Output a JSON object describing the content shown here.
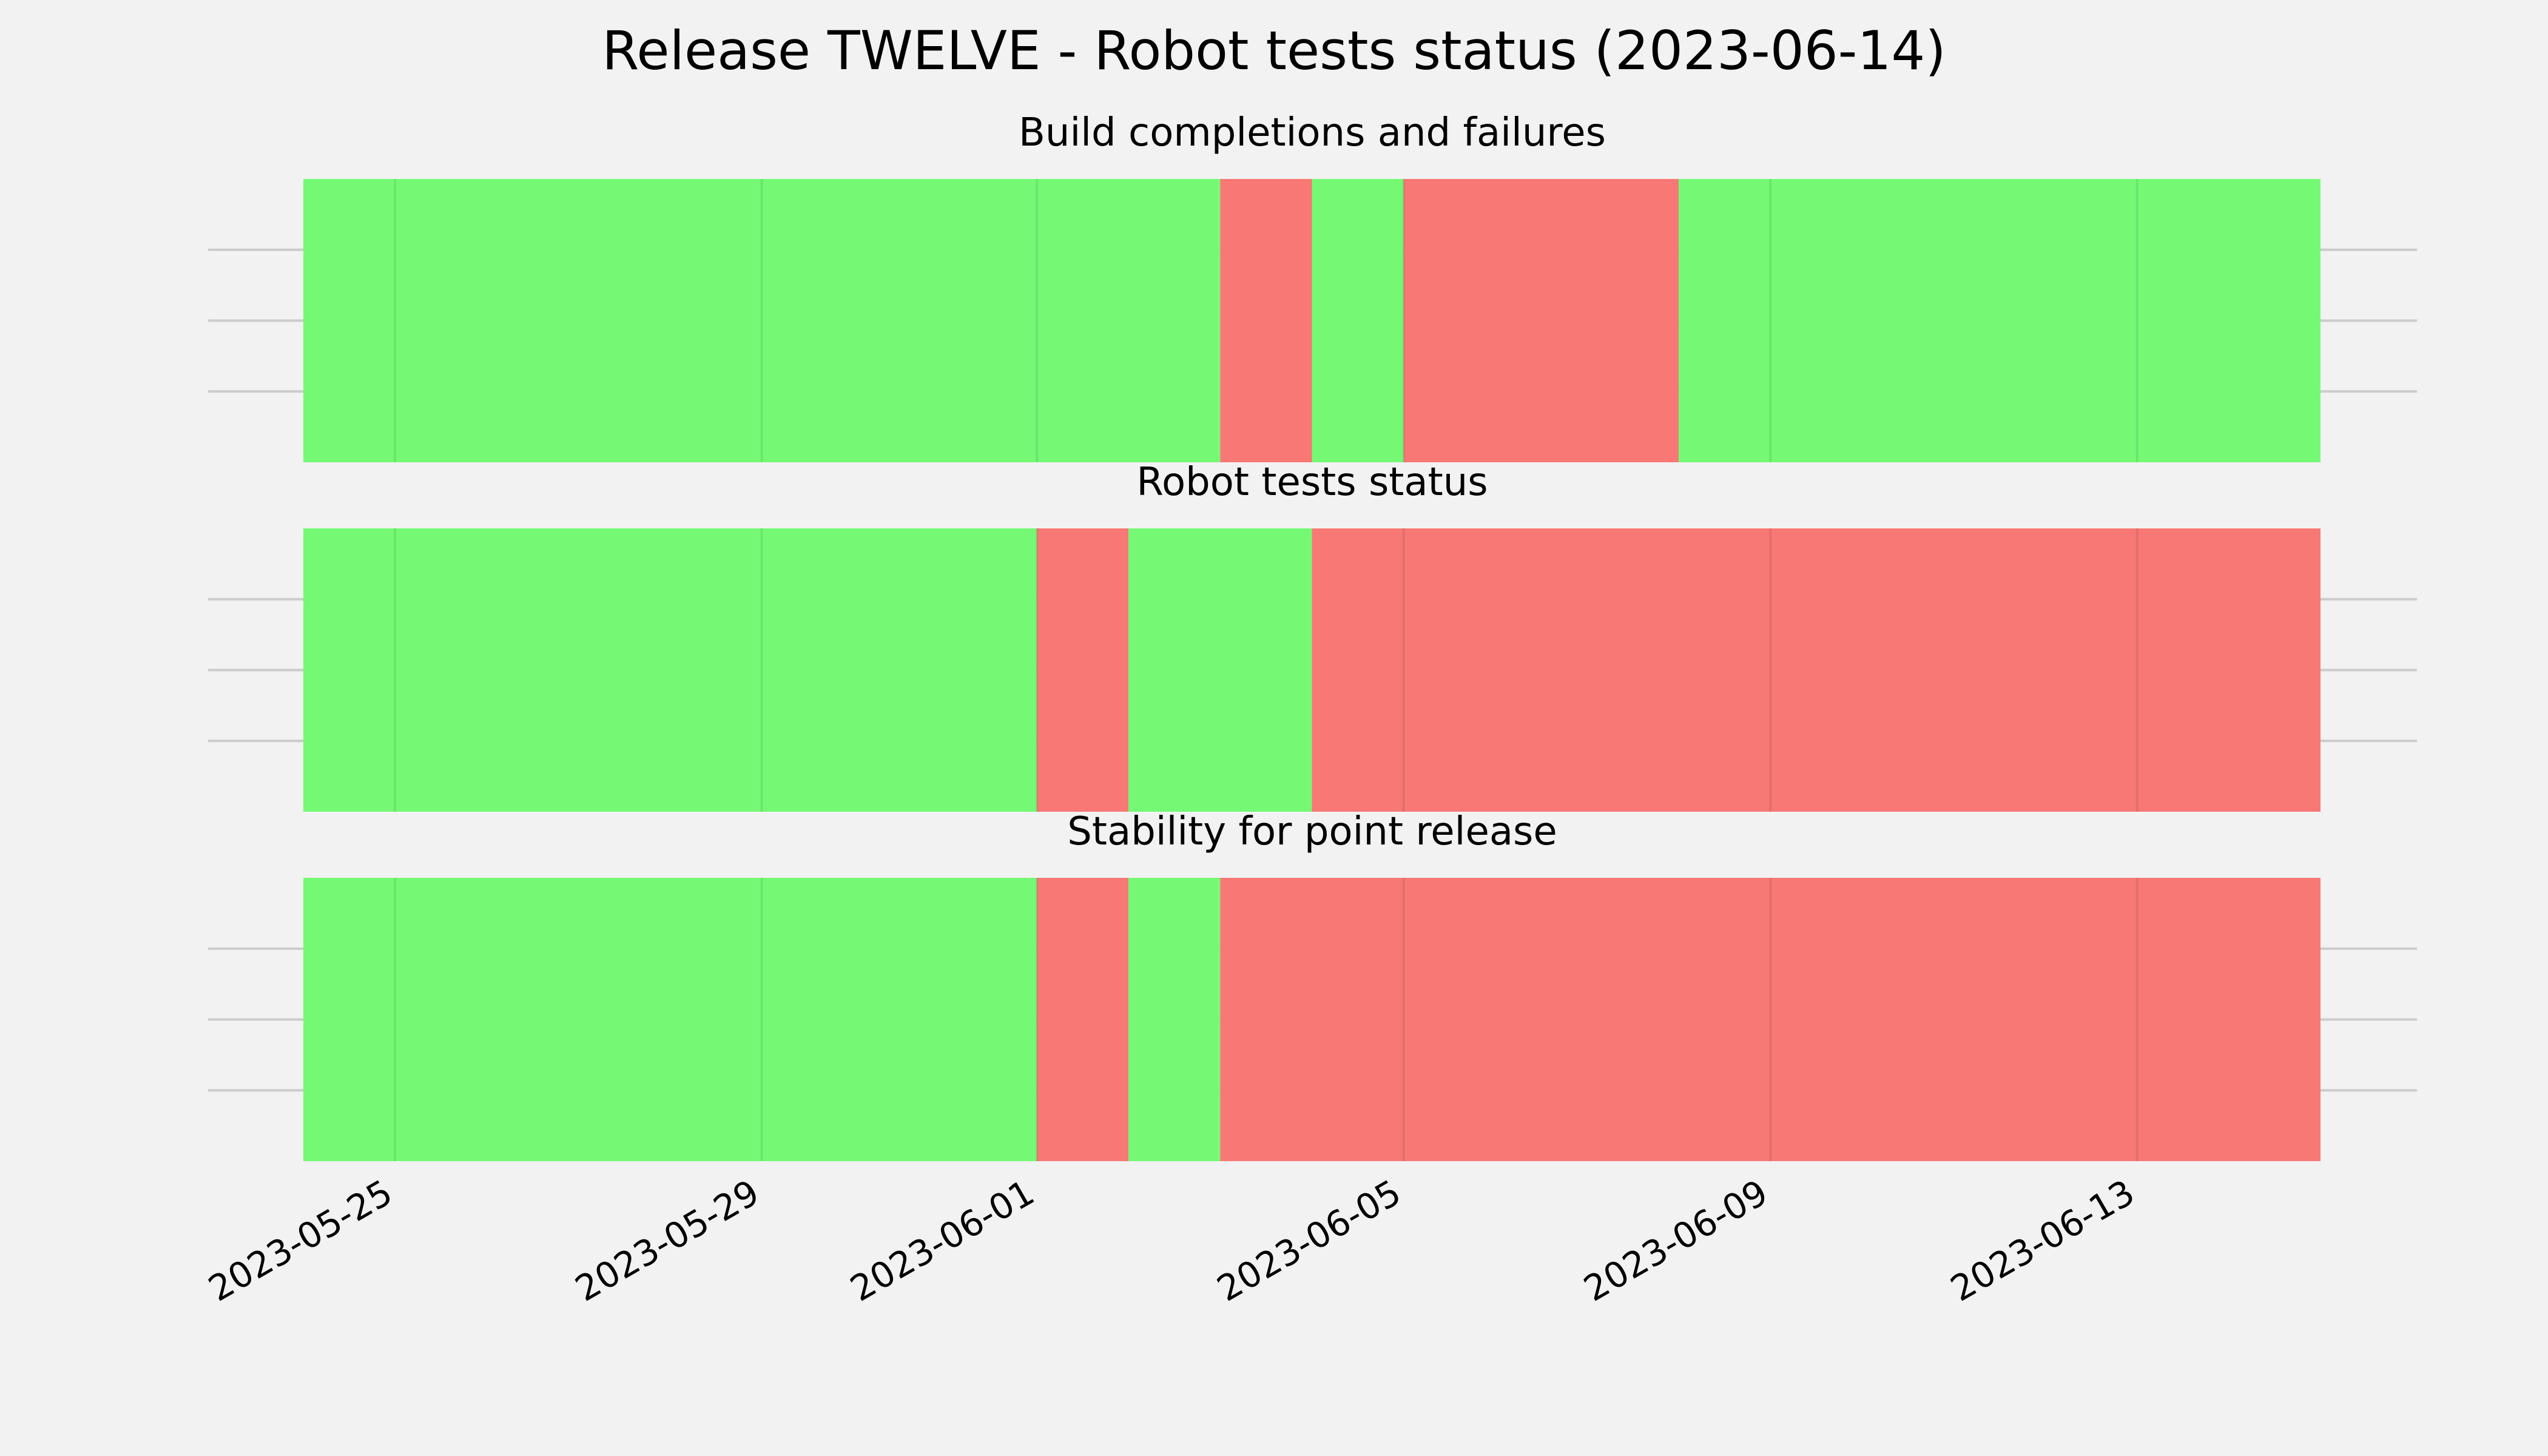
{
  "chart_data": {
    "type": "timeline",
    "title": "Release TWELVE - Robot tests status (2023-06-14)",
    "x_range": [
      "2023-05-24",
      "2023-06-15"
    ],
    "x_ticks": [
      "2023-05-25",
      "2023-05-29",
      "2023-06-01",
      "2023-06-05",
      "2023-06-09",
      "2023-06-13"
    ],
    "grid": true,
    "colors": {
      "pass": "#75f975",
      "fail": "#f87875",
      "background": "#f2f2f2"
    },
    "panels": [
      {
        "subtitle": "Build completions and failures",
        "segments": [
          {
            "start": "2023-05-24",
            "end": "2023-06-03",
            "status": "pass"
          },
          {
            "start": "2023-06-03",
            "end": "2023-06-04",
            "status": "fail"
          },
          {
            "start": "2023-06-04",
            "end": "2023-06-05",
            "status": "pass"
          },
          {
            "start": "2023-06-05",
            "end": "2023-06-08",
            "status": "fail"
          },
          {
            "start": "2023-06-08",
            "end": "2023-06-15",
            "status": "pass"
          }
        ]
      },
      {
        "subtitle": "Robot tests status",
        "segments": [
          {
            "start": "2023-05-24",
            "end": "2023-06-01",
            "status": "pass"
          },
          {
            "start": "2023-06-01",
            "end": "2023-06-02",
            "status": "fail"
          },
          {
            "start": "2023-06-02",
            "end": "2023-06-04",
            "status": "pass"
          },
          {
            "start": "2023-06-04",
            "end": "2023-06-15",
            "status": "fail"
          }
        ]
      },
      {
        "subtitle": "Stability for point release",
        "segments": [
          {
            "start": "2023-05-24",
            "end": "2023-06-01",
            "status": "pass"
          },
          {
            "start": "2023-06-01",
            "end": "2023-06-02",
            "status": "fail"
          },
          {
            "start": "2023-06-02",
            "end": "2023-06-03",
            "status": "pass"
          },
          {
            "start": "2023-06-03",
            "end": "2023-06-15",
            "status": "fail"
          }
        ]
      }
    ]
  }
}
